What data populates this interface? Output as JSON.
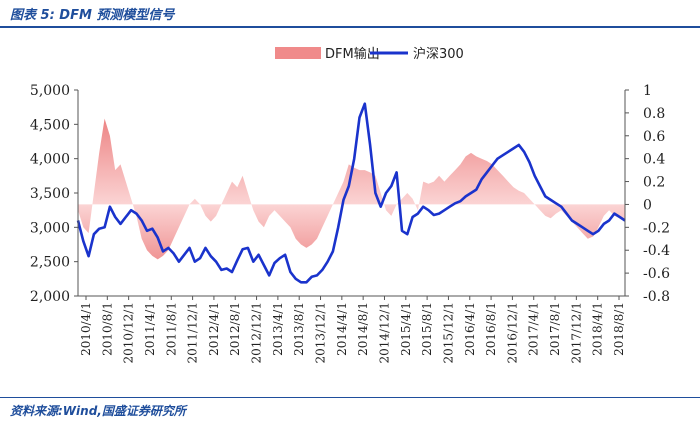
{
  "header": {
    "title": "图表 5:  DFM 预测模型信号"
  },
  "footer": {
    "source": "资料来源:Wind,国盛证券研究所"
  },
  "chart_data": {
    "type": "line",
    "legend": {
      "placement": "top-center",
      "entries": [
        "DFM输出",
        "沪深300"
      ]
    },
    "y_left": {
      "lim": [
        2000,
        5000
      ],
      "ticks": [
        2000,
        2500,
        3000,
        3500,
        4000,
        4500,
        5000
      ],
      "tick_labels": [
        "2,000",
        "2,500",
        "3,000",
        "3,500",
        "4,000",
        "4,500",
        "5,000"
      ]
    },
    "y_right": {
      "lim": [
        -0.8,
        1.0
      ],
      "ticks": [
        -0.8,
        -0.6,
        -0.4,
        -0.2,
        0,
        0.2,
        0.4,
        0.6,
        0.8,
        1.0
      ],
      "tick_labels": [
        "-0.8",
        "-0.6",
        "-0.4",
        "-0.2",
        "0",
        "0.2",
        "0.4",
        "0.6",
        "0.8",
        "1"
      ]
    },
    "x_tick_labels": [
      "2010/4/1",
      "2010/8/1",
      "2010/12/1",
      "2011/4/1",
      "2011/8/1",
      "2011/12/1",
      "2012/4/1",
      "2012/8/1",
      "2012/12/1",
      "2013/4/1",
      "2013/8/1",
      "2013/12/1",
      "2014/4/1",
      "2014/8/1",
      "2014/12/1",
      "2015/4/1",
      "2015/8/1",
      "2015/12/1",
      "2016/4/1",
      "2016/8/1",
      "2016/12/1",
      "2017/4/1",
      "2017/8/1",
      "2017/12/1",
      "2018/4/1",
      "2018/8/1"
    ],
    "series": [
      {
        "name": "DFM输出",
        "type": "area",
        "color": "#f08a8a",
        "axis": "right",
        "x": [
          0,
          1,
          2,
          3,
          4,
          5,
          6,
          7,
          8,
          9,
          10,
          11,
          12,
          13,
          14,
          15,
          16,
          17,
          18,
          19,
          20,
          21,
          22,
          23,
          24,
          25,
          26,
          27,
          28,
          29,
          30,
          31,
          32,
          33,
          34,
          35,
          36,
          37,
          38,
          39,
          40,
          41,
          42,
          43,
          44,
          45,
          46,
          47,
          48,
          49,
          50,
          51,
          52,
          53,
          54,
          55,
          56,
          57,
          58,
          59,
          60,
          61,
          62,
          63,
          64,
          65,
          66,
          67,
          68,
          69,
          70,
          71,
          72,
          73,
          74,
          75,
          76,
          77,
          78,
          79,
          80,
          81,
          82,
          83,
          84,
          85,
          86,
          87,
          88,
          89,
          90,
          91,
          92,
          93,
          94,
          95,
          96,
          97,
          98,
          99,
          100,
          101,
          102,
          103
        ],
        "values": [
          -0.05,
          -0.2,
          -0.25,
          0.1,
          0.45,
          0.75,
          0.6,
          0.3,
          0.35,
          0.2,
          0.05,
          -0.1,
          -0.3,
          -0.4,
          -0.45,
          -0.48,
          -0.45,
          -0.4,
          -0.3,
          -0.2,
          -0.1,
          0,
          0.05,
          0,
          -0.1,
          -0.15,
          -0.1,
          0,
          0.1,
          0.2,
          0.15,
          0.25,
          0.1,
          -0.05,
          -0.15,
          -0.2,
          -0.1,
          -0.05,
          -0.1,
          -0.15,
          -0.2,
          -0.3,
          -0.35,
          -0.38,
          -0.35,
          -0.3,
          -0.2,
          -0.1,
          0,
          0.1,
          0.2,
          0.35,
          0.32,
          0.3,
          0.3,
          0.28,
          0.25,
          0.1,
          -0.05,
          -0.1,
          0,
          0.05,
          0.1,
          0.05,
          -0.05,
          0.2,
          0.18,
          0.2,
          0.25,
          0.2,
          0.25,
          0.3,
          0.35,
          0.42,
          0.45,
          0.42,
          0.4,
          0.38,
          0.35,
          0.3,
          0.25,
          0.2,
          0.15,
          0.12,
          0.1,
          0.05,
          0,
          -0.05,
          -0.1,
          -0.12,
          -0.08,
          -0.05,
          -0.1,
          -0.15,
          -0.2,
          -0.25,
          -0.3,
          -0.28,
          -0.2,
          -0.1,
          -0.05,
          -0.1,
          -0.12,
          -0.15
        ]
      },
      {
        "name": "沪深300",
        "type": "line",
        "color": "#1a33cc",
        "axis": "left",
        "x": [
          0,
          1,
          2,
          3,
          4,
          5,
          6,
          7,
          8,
          9,
          10,
          11,
          12,
          13,
          14,
          15,
          16,
          17,
          18,
          19,
          20,
          21,
          22,
          23,
          24,
          25,
          26,
          27,
          28,
          29,
          30,
          31,
          32,
          33,
          34,
          35,
          36,
          37,
          38,
          39,
          40,
          41,
          42,
          43,
          44,
          45,
          46,
          47,
          48,
          49,
          50,
          51,
          52,
          53,
          54,
          55,
          56,
          57,
          58,
          59,
          60,
          61,
          62,
          63,
          64,
          65,
          66,
          67,
          68,
          69,
          70,
          71,
          72,
          73,
          74,
          75,
          76,
          77,
          78,
          79,
          80,
          81,
          82,
          83,
          84,
          85,
          86,
          87,
          88,
          89,
          90,
          91,
          92,
          93,
          94,
          95,
          96,
          97,
          98,
          99,
          100,
          101,
          102,
          103
        ],
        "values": [
          3100,
          2800,
          2580,
          2900,
          2980,
          3000,
          3300,
          3150,
          3050,
          3150,
          3250,
          3200,
          3100,
          2950,
          2980,
          2850,
          2650,
          2700,
          2620,
          2500,
          2600,
          2700,
          2500,
          2550,
          2700,
          2580,
          2500,
          2380,
          2400,
          2350,
          2520,
          2680,
          2700,
          2500,
          2600,
          2450,
          2300,
          2480,
          2550,
          2600,
          2350,
          2250,
          2200,
          2200,
          2280,
          2300,
          2380,
          2500,
          2650,
          3000,
          3400,
          3600,
          4000,
          4600,
          4800,
          4200,
          3500,
          3300,
          3500,
          3600,
          3800,
          2950,
          2900,
          3150,
          3200,
          3300,
          3250,
          3180,
          3200,
          3250,
          3300,
          3350,
          3380,
          3450,
          3500,
          3550,
          3700,
          3800,
          3900,
          4000,
          4050,
          4100,
          4150,
          4200,
          4100,
          3950,
          3750,
          3600,
          3450,
          3400,
          3350,
          3300,
          3200,
          3100,
          3050,
          3000,
          2950,
          2900,
          2950,
          3050,
          3100,
          3200,
          3150,
          3100
        ]
      }
    ]
  }
}
